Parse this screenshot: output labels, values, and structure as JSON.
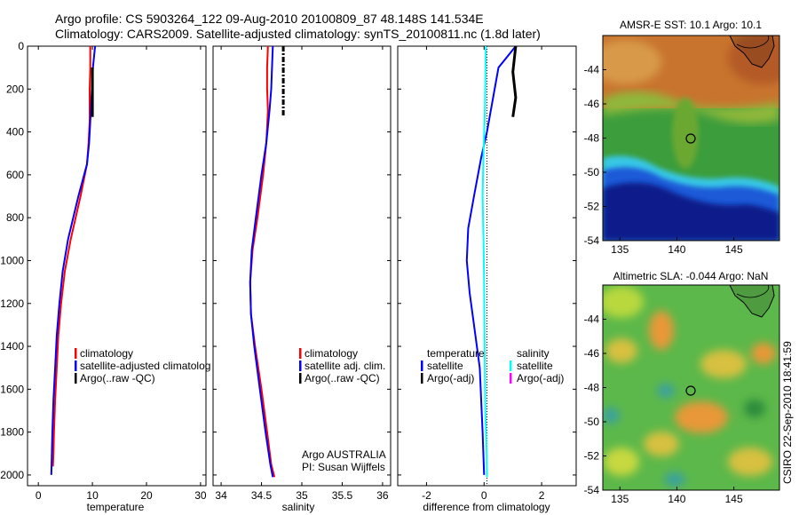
{
  "figure": {
    "title_line1": "Argo profile: CS 5903264_122 09-Aug-2010 20100809_87 48.148S 141.534E",
    "title_line2": "Climatology: CARS2009. Satellite-adjusted climatology: synTS_20100811.nc (1.8d later)",
    "credit": "CSIRO 22-Sep-2010 18:41:59"
  },
  "colors": {
    "climatology": "#ff0000",
    "satellite": "#0000ff",
    "argo": "#000000",
    "sal_satellite": "#00ffff",
    "sal_argo": "#ff00ff"
  },
  "chart_data": [
    {
      "type": "line",
      "id": "temperature",
      "xlabel": "temperature",
      "ylabel": "",
      "xlim": [
        -2,
        31
      ],
      "ylim": [
        2050,
        0
      ],
      "xticks": [
        0,
        10,
        20,
        30
      ],
      "yticks": [
        0,
        200,
        400,
        600,
        800,
        1000,
        1200,
        1400,
        1600,
        1800,
        2000
      ],
      "legend": [
        "climatology",
        "satellite-adjusted climatolog",
        "Argo(..raw -QC)"
      ],
      "series": [
        {
          "name": "climatology",
          "color": "#ff0000",
          "x": [
            9.6,
            9.6,
            9.5,
            9.5,
            9.3,
            9.0,
            7.8,
            6.0,
            4.9,
            4.2,
            3.7,
            3.4,
            3.1,
            2.9,
            2.8,
            2.7
          ],
          "y": [
            0,
            100,
            200,
            350,
            450,
            550,
            700,
            900,
            1050,
            1200,
            1350,
            1500,
            1650,
            1800,
            1900,
            1960
          ]
        },
        {
          "name": "satellite-adjusted climatolog",
          "color": "#0000ff",
          "x": [
            10.5,
            10.1,
            9.9,
            9.6,
            9.4,
            9.0,
            7.4,
            5.5,
            4.5,
            3.9,
            3.4,
            3.1,
            2.8,
            2.6,
            2.5,
            2.4
          ],
          "y": [
            0,
            100,
            200,
            350,
            450,
            550,
            700,
            900,
            1050,
            1200,
            1350,
            1500,
            1650,
            1800,
            1900,
            2000
          ]
        },
        {
          "name": "Argo(..raw -QC)",
          "color": "#000000",
          "x": [
            10.0,
            10.0,
            10.0,
            10.0
          ],
          "y": [
            100,
            200,
            280,
            330
          ]
        }
      ]
    },
    {
      "type": "line",
      "id": "salinity",
      "xlabel": "salinity",
      "ylabel": "",
      "xlim": [
        33.9,
        36.1
      ],
      "ylim": [
        2050,
        0
      ],
      "xticks": [
        34,
        34.5,
        35,
        35.5,
        36
      ],
      "legend": [
        "climatology",
        "satellite adj. clim.",
        "Argo(..raw -QC)"
      ],
      "annotation": [
        "Argo AUSTRALIA",
        "PI: Susan Wijffels"
      ],
      "series": [
        {
          "name": "climatology",
          "color": "#ff0000",
          "x": [
            34.58,
            34.57,
            34.57,
            34.58,
            34.56,
            34.52,
            34.45,
            34.39,
            34.36,
            34.37,
            34.42,
            34.5,
            34.57,
            34.62,
            34.66
          ],
          "y": [
            0,
            100,
            200,
            300,
            450,
            600,
            800,
            950,
            1100,
            1250,
            1400,
            1600,
            1800,
            1950,
            2010
          ]
        },
        {
          "name": "satellite adj. clim.",
          "color": "#0000ff",
          "x": [
            34.64,
            34.63,
            34.62,
            34.6,
            34.56,
            34.5,
            34.43,
            34.38,
            34.36,
            34.37,
            34.41,
            34.48,
            34.55,
            34.61,
            34.64
          ],
          "y": [
            0,
            100,
            200,
            300,
            450,
            600,
            800,
            950,
            1100,
            1250,
            1400,
            1600,
            1800,
            1950,
            2010
          ]
        },
        {
          "name": "Argo(..raw -QC)",
          "color": "#000000",
          "x": [
            34.77,
            34.77,
            34.77,
            34.77
          ],
          "y": [
            0,
            120,
            240,
            330
          ]
        }
      ]
    },
    {
      "type": "line",
      "id": "difference",
      "xlabel": "difference from climatology",
      "ylabel": "",
      "xlim": [
        -3,
        3.2
      ],
      "ylim": [
        2050,
        0
      ],
      "xticks": [
        -2,
        0,
        2
      ],
      "legend_temperature": {
        "header": "temperature",
        "entries": [
          "satellite",
          "Argo(-adj)"
        ]
      },
      "legend_salinity": {
        "header": "salinity",
        "entries": [
          "satellite",
          "Argo(-adj)"
        ]
      },
      "series": [
        {
          "name": "temperature satellite",
          "color": "#0000ff",
          "x": [
            1.1,
            0.8,
            0.5,
            0.3,
            0.1,
            -0.1,
            -0.35,
            -0.55,
            -0.6,
            -0.5,
            -0.35,
            -0.15,
            -0.05,
            0.0
          ],
          "y": [
            0,
            50,
            100,
            250,
            400,
            520,
            700,
            850,
            1000,
            1150,
            1300,
            1500,
            1800,
            2000
          ]
        },
        {
          "name": "temperature Argo(-adj)",
          "color": "#000000",
          "x": [
            1.1,
            1.0,
            1.1,
            1.0
          ],
          "y": [
            0,
            120,
            240,
            330
          ]
        },
        {
          "name": "salinity satellite",
          "color": "#00ffff",
          "x": [
            0.06,
            0.05,
            0.03,
            -0.02,
            -0.05,
            -0.02,
            0.0,
            0.02,
            0.04,
            0.09,
            0.1
          ],
          "y": [
            0,
            100,
            300,
            500,
            700,
            900,
            1100,
            1400,
            1700,
            1900,
            2010
          ]
        }
      ]
    },
    {
      "type": "heatmap",
      "id": "sst_map",
      "title": "AMSR-E SST: 10.1 Argo: 10.1",
      "xlim": [
        133.5,
        149
      ],
      "ylim": [
        -54,
        -42
      ],
      "xticks": [
        135,
        140,
        145
      ],
      "yticks": [
        -44,
        -46,
        -48,
        -50,
        -52,
        -54
      ],
      "marker": {
        "lon": 141.5,
        "lat": -48.15
      }
    },
    {
      "type": "heatmap",
      "id": "sla_map",
      "title": "Altimetric SLA: -0.044 Argo: NaN",
      "xlim": [
        133.5,
        149
      ],
      "ylim": [
        -54,
        -42
      ],
      "xticks": [
        135,
        140,
        145
      ],
      "yticks": [
        -44,
        -46,
        -48,
        -50,
        -52,
        -54
      ],
      "marker": {
        "lon": 141.5,
        "lat": -48.15
      }
    }
  ]
}
